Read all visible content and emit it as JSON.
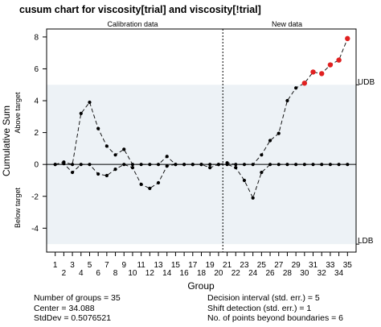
{
  "chart_data": {
    "type": "line",
    "title": "cusum chart for viscosity[trial] and viscosity[!trial]",
    "xlabel": "Group",
    "ylabel": "Cumulative Sum",
    "ylabel_upper": "Above target",
    "ylabel_lower": "Below target",
    "xlim": [
      0,
      36
    ],
    "ylim": [
      -5.5,
      8.5
    ],
    "x_ticks": [
      1,
      3,
      5,
      7,
      9,
      11,
      13,
      15,
      17,
      19,
      21,
      23,
      25,
      27,
      29,
      31,
      33,
      35
    ],
    "x_tick_labels_row1": [
      "1",
      "3",
      "5",
      "7",
      "9",
      "11",
      "13",
      "15",
      "17",
      "19",
      "21",
      "23",
      "25",
      "27",
      "29",
      "31",
      "33",
      "35"
    ],
    "x_tick_labels_row2": [
      "2",
      "4",
      "6",
      "8",
      "10",
      "12",
      "14",
      "16",
      "18",
      "20",
      "22",
      "24",
      "26",
      "28",
      "30",
      "32",
      "34"
    ],
    "y_ticks": [
      -4,
      -2,
      0,
      2,
      4,
      6,
      8
    ],
    "y_tick_labels": [
      "-4",
      "-2",
      "0",
      "2",
      "4",
      "6",
      "8"
    ],
    "udb": 5,
    "ldb": -5,
    "udb_label": "UDB",
    "ldb_label": "LDB",
    "phase_split_after_group": 20,
    "phase_labels": [
      "Calibration data",
      "New data"
    ],
    "groups": [
      1,
      2,
      3,
      4,
      5,
      6,
      7,
      8,
      9,
      10,
      11,
      12,
      13,
      14,
      15,
      16,
      17,
      18,
      19,
      20,
      21,
      22,
      23,
      24,
      25,
      26,
      27,
      28,
      29,
      30,
      31,
      32,
      33,
      34,
      35
    ],
    "series": [
      {
        "name": "upper",
        "values": [
          0,
          0.15,
          0,
          3.2,
          3.9,
          2.25,
          1.15,
          0.6,
          0.95,
          0,
          0,
          0,
          0,
          0.5,
          0,
          0,
          0,
          0,
          0,
          0,
          0.1,
          0,
          0,
          0,
          0.6,
          1.5,
          1.95,
          4.0,
          4.8,
          5.1,
          5.8,
          5.7,
          6.25,
          6.55,
          7.9
        ]
      },
      {
        "name": "lower",
        "values": [
          0,
          0.05,
          -0.5,
          0,
          0,
          -0.6,
          -0.7,
          -0.3,
          0,
          -0.2,
          -1.25,
          -1.5,
          -1.15,
          -0.1,
          0,
          0,
          0,
          0,
          -0.2,
          0,
          0,
          -0.2,
          -1.0,
          -2.1,
          -0.5,
          0,
          0,
          0,
          0,
          0,
          0,
          0,
          0,
          0,
          0
        ]
      }
    ],
    "colors": {
      "in_control": "#000000",
      "beyond_boundary": "#e02020",
      "outside_band": "#edf2f6"
    }
  },
  "stats": {
    "col1": [
      "Number of groups = 35",
      "Center = 34.088",
      "StdDev = 0.5076521"
    ],
    "col2": [
      "Decision interval (std. err.) = 5",
      "Shift detection (std. err.) = 1",
      "No. of points beyond boundaries = 6"
    ]
  }
}
